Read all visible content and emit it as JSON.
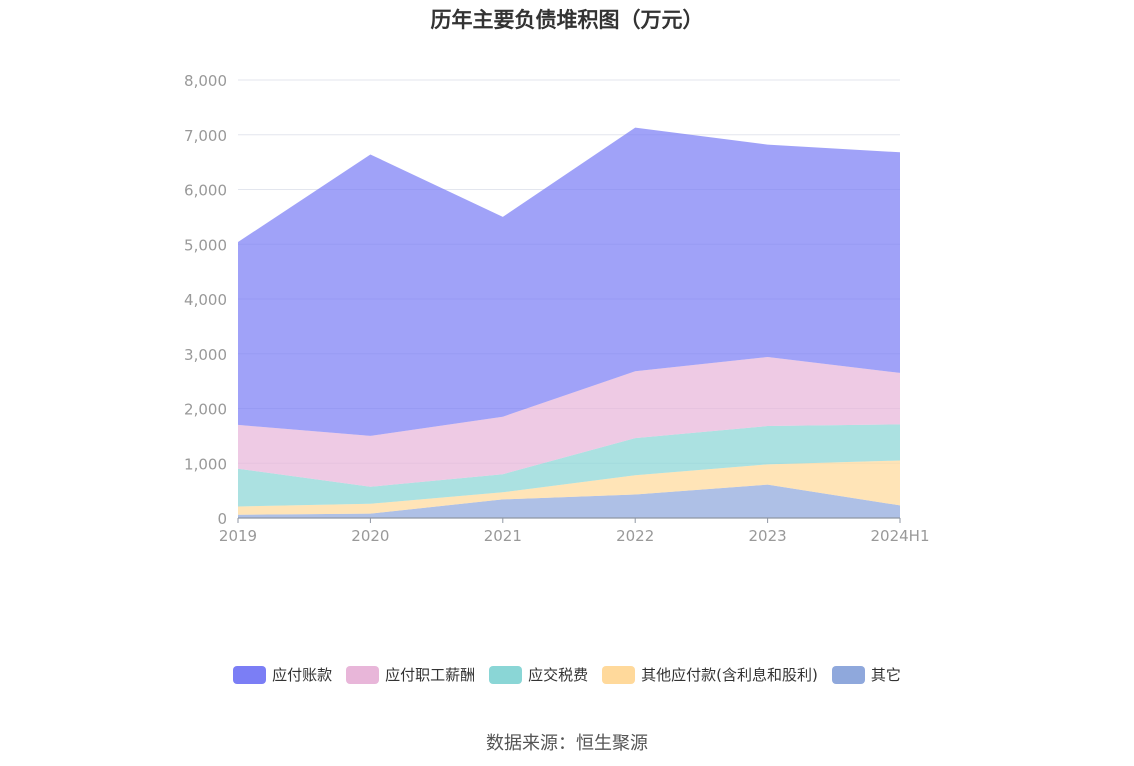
{
  "chart_data": {
    "type": "area",
    "title": "历年主要负债堆积图（万元）",
    "categories": [
      "2019",
      "2020",
      "2021",
      "2022",
      "2023",
      "2024H1"
    ],
    "ylim": [
      0,
      8000
    ],
    "yticks": [
      "0",
      "1,000",
      "2,000",
      "3,000",
      "4,000",
      "5,000",
      "6,000",
      "7,000",
      "8,000"
    ],
    "stacked": true,
    "grid": true,
    "legend_position": "bottom",
    "series": [
      {
        "name": "应付账款",
        "color": "#7b7ef5",
        "values": [
          3340,
          5140,
          3650,
          4450,
          3880,
          4030
        ]
      },
      {
        "name": "应付职工薪酬",
        "color": "#e8b6d9",
        "values": [
          800,
          930,
          1050,
          1220,
          1260,
          940
        ]
      },
      {
        "name": "应交税费",
        "color": "#8ad6d6",
        "values": [
          690,
          310,
          330,
          680,
          700,
          660
        ]
      },
      {
        "name": "其他应付款(含利息和股利)",
        "color": "#ffd99b",
        "values": [
          150,
          180,
          130,
          350,
          370,
          820
        ]
      },
      {
        "name": "其它",
        "color": "#8fa8dc",
        "values": [
          60,
          80,
          340,
          430,
          610,
          230
        ]
      }
    ]
  },
  "footer": {
    "source": "数据来源：恒生聚源"
  }
}
